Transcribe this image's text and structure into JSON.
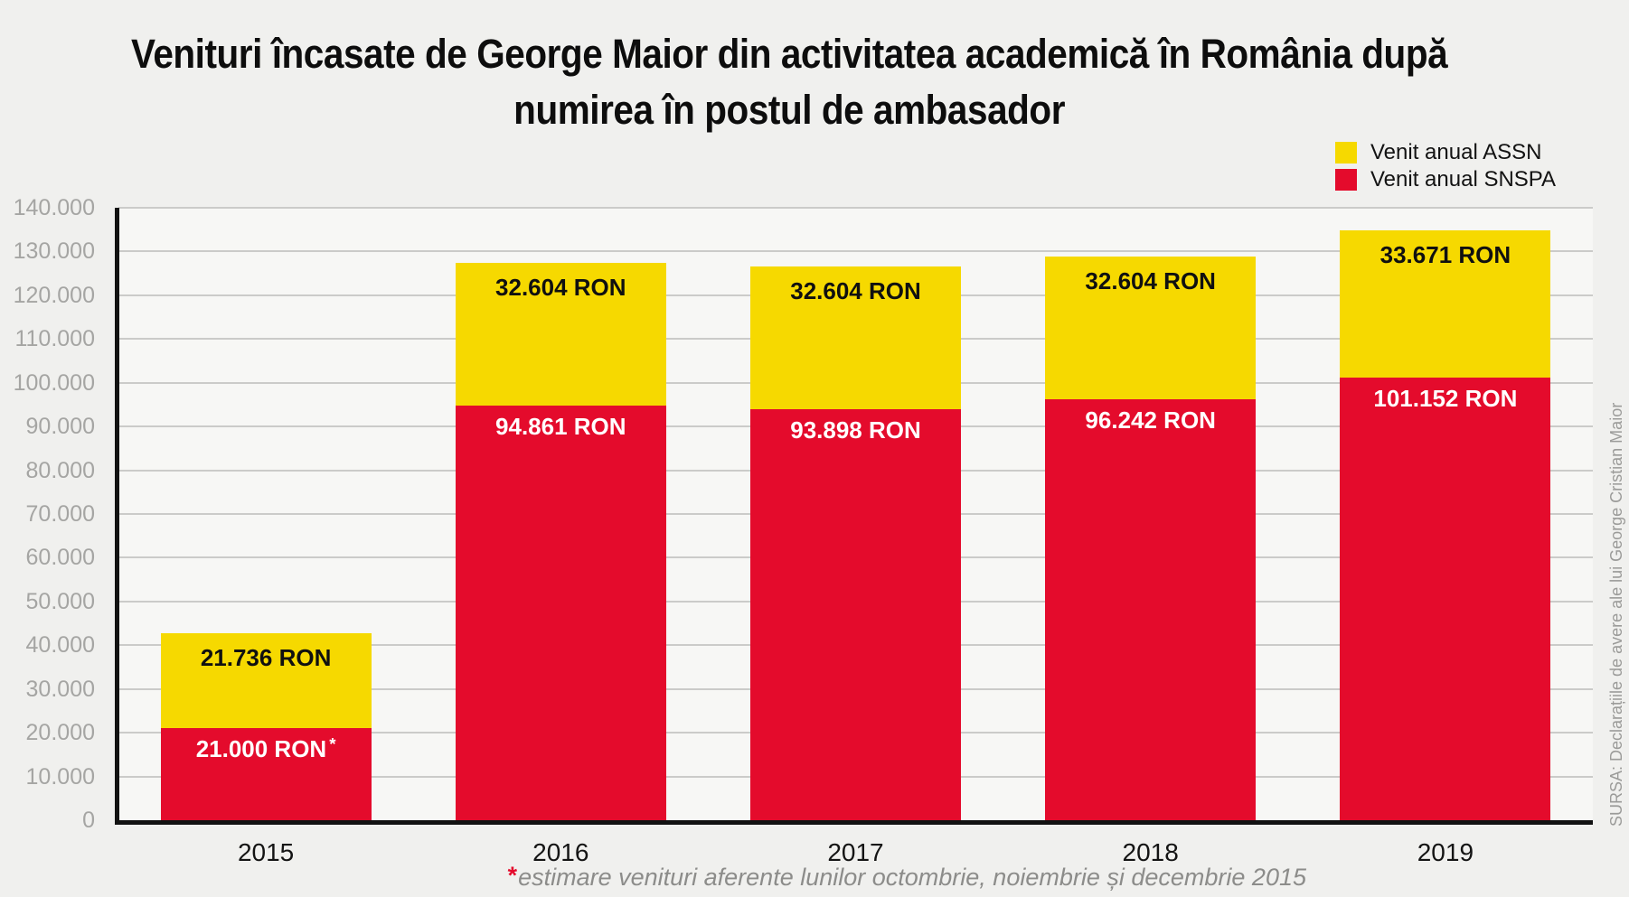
{
  "title": {
    "lines": [
      "Venituri încasate de George Maior din activitatea academică în România după",
      "numirea în postul de ambasador"
    ]
  },
  "legend": {
    "items": [
      {
        "label": "Venit anual ASSN",
        "color": "#f6d900"
      },
      {
        "label": "Venit anual SNSPA",
        "color": "#e40b2c"
      }
    ]
  },
  "chart_data": {
    "type": "bar",
    "stacked": true,
    "categories": [
      "2015",
      "2016",
      "2017",
      "2018",
      "2019"
    ],
    "series": [
      {
        "name": "Venit anual SNSPA",
        "color": "#e40b2c",
        "values": [
          21000,
          94861,
          93898,
          96242,
          101152
        ],
        "labels": [
          "21.000 RON *",
          "94.861 RON",
          "93.898 RON",
          "96.242 RON",
          "101.152 RON"
        ]
      },
      {
        "name": "Venit anual ASSN",
        "color": "#f6d900",
        "values": [
          21736,
          32604,
          32604,
          32604,
          33671
        ],
        "labels": [
          "21.736 RON",
          "32.604 RON",
          "32.604 RON",
          "32.604 RON",
          "33.671 RON"
        ]
      }
    ],
    "ylim": [
      0,
      140000
    ],
    "ytick_step": 10000,
    "ytick_labels": [
      "0",
      "10.000",
      "20.000",
      "30.000",
      "40.000",
      "50.000",
      "60.000",
      "70.000",
      "80.000",
      "90.000",
      "100.000",
      "110.000",
      "120.000",
      "130.000",
      "140.000"
    ],
    "grid": true,
    "legend_position": "top-right",
    "unit": "RON"
  },
  "footnote": {
    "asterisk": "*",
    "text": "estimare venituri aferente lunilor octombrie, noiembrie și decembrie 2015"
  },
  "source": "SURSA: Declarațiile de avere ale lui George Cristian Maior"
}
